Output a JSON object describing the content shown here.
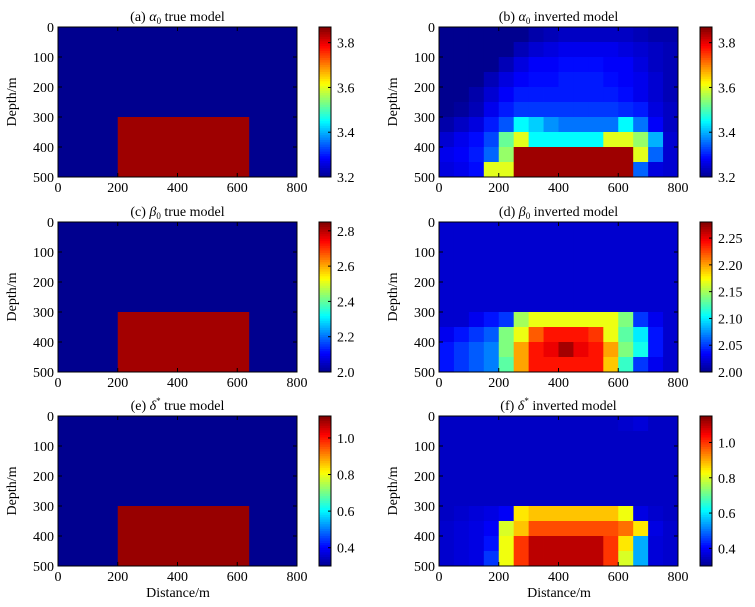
{
  "figure": {
    "xlabel": "Distance/m"
  },
  "colors": {
    "jet": [
      "#00008F",
      "#0000FF",
      "#007FFF",
      "#00FFFF",
      "#7FFF7F",
      "#FFFF00",
      "#FF7F00",
      "#FF0000",
      "#7F0000"
    ],
    "background": "#ffffff"
  },
  "chart_data": [
    {
      "type": "heatmap",
      "id": "a",
      "title_prefix": "(a)",
      "title_symbol": "α",
      "title_sub": "0",
      "title_sup": "",
      "title_suffix": "true model",
      "ylabel": "Depth/m",
      "xlim": [
        0,
        800
      ],
      "ylim": [
        0,
        500
      ],
      "xticks": [
        "0",
        "200",
        "400",
        "600",
        "800"
      ],
      "yticks": [
        "0",
        "100",
        "200",
        "300",
        "400",
        "500"
      ],
      "colorbar": {
        "range": [
          3.2,
          3.87
        ],
        "ticks": [
          "3.2",
          "3.4",
          "3.6",
          "3.8"
        ],
        "tick_values": [
          3.2,
          3.4,
          3.6,
          3.8
        ]
      },
      "background_value": 3.2,
      "true_block": {
        "x_range": [
          200,
          640
        ],
        "depth_range": [
          300,
          500
        ],
        "value": 3.85
      }
    },
    {
      "type": "heatmap",
      "id": "b",
      "title_prefix": "(b)",
      "title_symbol": "α",
      "title_sub": "0",
      "title_sup": "",
      "title_suffix": "inverted  model",
      "ylabel": "Depth/m",
      "xlim": [
        0,
        800
      ],
      "ylim": [
        0,
        500
      ],
      "xticks": [
        "0",
        "200",
        "400",
        "600",
        "800"
      ],
      "yticks": [
        "0",
        "100",
        "200",
        "300",
        "400",
        "500"
      ],
      "colorbar": {
        "range": [
          3.2,
          3.87
        ],
        "ticks": [
          "3.2",
          "3.4",
          "3.6",
          "3.8"
        ],
        "tick_values": [
          3.2,
          3.4,
          3.6,
          3.8
        ]
      },
      "grid": {
        "x_step": 50,
        "depth_step": 50,
        "cols": 16,
        "rows": 10
      },
      "cells": [
        [
          3.2,
          3.2,
          3.2,
          3.2,
          3.2,
          3.2,
          3.22,
          3.23,
          3.24,
          3.24,
          3.24,
          3.24,
          3.24,
          3.23,
          3.22,
          3.22
        ],
        [
          3.2,
          3.2,
          3.2,
          3.2,
          3.2,
          3.23,
          3.25,
          3.26,
          3.27,
          3.27,
          3.27,
          3.27,
          3.26,
          3.25,
          3.24,
          3.23
        ],
        [
          3.2,
          3.2,
          3.2,
          3.2,
          3.23,
          3.26,
          3.28,
          3.28,
          3.29,
          3.29,
          3.29,
          3.28,
          3.28,
          3.26,
          3.24,
          3.23
        ],
        [
          3.2,
          3.2,
          3.2,
          3.23,
          3.26,
          3.28,
          3.29,
          3.29,
          3.3,
          3.3,
          3.3,
          3.29,
          3.28,
          3.27,
          3.25,
          3.23
        ],
        [
          3.2,
          3.2,
          3.22,
          3.25,
          3.28,
          3.3,
          3.3,
          3.3,
          3.3,
          3.3,
          3.3,
          3.3,
          3.29,
          3.27,
          3.25,
          3.23
        ],
        [
          3.2,
          3.21,
          3.23,
          3.27,
          3.3,
          3.32,
          3.32,
          3.32,
          3.32,
          3.32,
          3.32,
          3.32,
          3.31,
          3.3,
          3.26,
          3.24
        ],
        [
          3.22,
          3.24,
          3.26,
          3.3,
          3.34,
          3.45,
          3.42,
          3.38,
          3.36,
          3.36,
          3.36,
          3.36,
          3.45,
          3.36,
          3.28,
          3.24
        ],
        [
          3.25,
          3.27,
          3.29,
          3.33,
          3.52,
          3.6,
          3.45,
          3.45,
          3.45,
          3.45,
          3.45,
          3.6,
          3.6,
          3.55,
          3.4,
          3.25
        ],
        [
          3.27,
          3.28,
          3.3,
          3.35,
          3.55,
          3.85,
          3.85,
          3.85,
          3.85,
          3.85,
          3.85,
          3.85,
          3.85,
          3.6,
          3.35,
          3.25
        ],
        [
          3.26,
          3.27,
          3.29,
          3.6,
          3.6,
          3.85,
          3.85,
          3.85,
          3.85,
          3.85,
          3.85,
          3.85,
          3.85,
          3.35,
          3.26,
          3.25
        ]
      ]
    },
    {
      "type": "heatmap",
      "id": "c",
      "title_prefix": "(c)",
      "title_symbol": "β",
      "title_sub": "0",
      "title_sup": "",
      "title_suffix": "true model",
      "ylabel": "Depth/m",
      "xlim": [
        0,
        800
      ],
      "ylim": [
        0,
        500
      ],
      "xticks": [
        "0",
        "200",
        "400",
        "600",
        "800"
      ],
      "yticks": [
        "0",
        "100",
        "200",
        "300",
        "400",
        "500"
      ],
      "colorbar": {
        "range": [
          2.0,
          2.85
        ],
        "ticks": [
          "2.0",
          "2.2",
          "2.4",
          "2.6",
          "2.8"
        ],
        "tick_values": [
          2.0,
          2.2,
          2.4,
          2.6,
          2.8
        ]
      },
      "background_value": 2.0,
      "true_block": {
        "x_range": [
          200,
          640
        ],
        "depth_range": [
          300,
          500
        ],
        "value": 2.82
      }
    },
    {
      "type": "heatmap",
      "id": "d",
      "title_prefix": "(d)",
      "title_symbol": "β",
      "title_sub": "0",
      "title_sup": "",
      "title_suffix": "inverted model",
      "ylabel": "Depth/m",
      "xlim": [
        0,
        800
      ],
      "ylim": [
        0,
        500
      ],
      "xticks": [
        "0",
        "200",
        "400",
        "600",
        "800"
      ],
      "yticks": [
        "0",
        "100",
        "200",
        "300",
        "400",
        "500"
      ],
      "colorbar": {
        "range": [
          2.0,
          2.28
        ],
        "ticks": [
          "2.00",
          "2.05",
          "2.10",
          "2.15",
          "2.20",
          "2.25"
        ],
        "tick_values": [
          2.0,
          2.05,
          2.1,
          2.15,
          2.2,
          2.25
        ]
      },
      "grid": {
        "x_step": 50,
        "depth_step": 50,
        "cols": 16,
        "rows": 10
      },
      "cells": [
        [
          2.02,
          2.02,
          2.02,
          2.02,
          2.02,
          2.02,
          2.02,
          2.02,
          2.02,
          2.02,
          2.02,
          2.02,
          2.02,
          2.02,
          2.02,
          2.02
        ],
        [
          2.02,
          2.02,
          2.02,
          2.02,
          2.02,
          2.02,
          2.02,
          2.02,
          2.02,
          2.02,
          2.02,
          2.02,
          2.02,
          2.02,
          2.02,
          2.02
        ],
        [
          2.02,
          2.02,
          2.02,
          2.02,
          2.02,
          2.02,
          2.02,
          2.02,
          2.02,
          2.02,
          2.02,
          2.02,
          2.02,
          2.02,
          2.02,
          2.02
        ],
        [
          2.02,
          2.02,
          2.02,
          2.02,
          2.02,
          2.02,
          2.02,
          2.02,
          2.02,
          2.02,
          2.02,
          2.02,
          2.02,
          2.02,
          2.02,
          2.02
        ],
        [
          2.02,
          2.02,
          2.02,
          2.02,
          2.02,
          2.02,
          2.02,
          2.02,
          2.02,
          2.02,
          2.02,
          2.02,
          2.02,
          2.02,
          2.02,
          2.02
        ],
        [
          2.02,
          2.02,
          2.02,
          2.02,
          2.02,
          2.02,
          2.02,
          2.02,
          2.02,
          2.02,
          2.02,
          2.02,
          2.02,
          2.02,
          2.02,
          2.02
        ],
        [
          2.02,
          2.02,
          2.03,
          2.04,
          2.05,
          2.15,
          2.17,
          2.17,
          2.17,
          2.17,
          2.17,
          2.17,
          2.14,
          2.05,
          2.03,
          2.02
        ],
        [
          2.03,
          2.04,
          2.05,
          2.06,
          2.14,
          2.17,
          2.22,
          2.24,
          2.24,
          2.24,
          2.23,
          2.17,
          2.13,
          2.1,
          2.04,
          2.02
        ],
        [
          2.04,
          2.05,
          2.06,
          2.07,
          2.14,
          2.2,
          2.24,
          2.25,
          2.27,
          2.25,
          2.24,
          2.2,
          2.14,
          2.11,
          2.04,
          2.02
        ],
        [
          2.04,
          2.05,
          2.06,
          2.07,
          2.13,
          2.2,
          2.24,
          2.24,
          2.24,
          2.24,
          2.24,
          2.19,
          2.12,
          2.05,
          2.03,
          2.02
        ]
      ]
    },
    {
      "type": "heatmap",
      "id": "e",
      "title_prefix": "(e)",
      "title_symbol": "δ",
      "title_sub": "",
      "title_sup": "*",
      "title_suffix": "true model",
      "ylabel": "Depth/m",
      "xlim": [
        0,
        800
      ],
      "ylim": [
        0,
        500
      ],
      "xticks": [
        "0",
        "200",
        "400",
        "600",
        "800"
      ],
      "yticks": [
        "0",
        "100",
        "200",
        "300",
        "400",
        "500"
      ],
      "colorbar": {
        "range": [
          0.3,
          1.12
        ],
        "ticks": [
          "0.4",
          "0.6",
          "0.8",
          "1.0"
        ],
        "tick_values": [
          0.4,
          0.6,
          0.8,
          1.0
        ]
      },
      "background_value": 0.3,
      "true_block": {
        "x_range": [
          200,
          640
        ],
        "depth_range": [
          300,
          500
        ],
        "value": 1.1
      }
    },
    {
      "type": "heatmap",
      "id": "f",
      "title_prefix": "(f)",
      "title_symbol": "δ",
      "title_sub": "",
      "title_sup": "*",
      "title_suffix": "inverted model",
      "ylabel": "Depth/m",
      "xlim": [
        0,
        800
      ],
      "ylim": [
        0,
        500
      ],
      "xticks": [
        "0",
        "200",
        "400",
        "600",
        "800"
      ],
      "yticks": [
        "0",
        "100",
        "200",
        "300",
        "400",
        "500"
      ],
      "colorbar": {
        "range": [
          0.3,
          1.15
        ],
        "ticks": [
          "0.4",
          "0.6",
          "0.8",
          "1.0"
        ],
        "tick_values": [
          0.4,
          0.6,
          0.8,
          1.0
        ]
      },
      "grid": {
        "x_step": 50,
        "depth_step": 50,
        "cols": 16,
        "rows": 10
      },
      "cells": [
        [
          0.35,
          0.35,
          0.35,
          0.35,
          0.35,
          0.35,
          0.35,
          0.35,
          0.35,
          0.35,
          0.35,
          0.35,
          0.36,
          0.37,
          0.35,
          0.35
        ],
        [
          0.35,
          0.35,
          0.35,
          0.35,
          0.35,
          0.35,
          0.35,
          0.35,
          0.35,
          0.35,
          0.35,
          0.35,
          0.35,
          0.35,
          0.35,
          0.35
        ],
        [
          0.35,
          0.35,
          0.35,
          0.35,
          0.35,
          0.35,
          0.35,
          0.35,
          0.35,
          0.35,
          0.35,
          0.35,
          0.35,
          0.35,
          0.35,
          0.35
        ],
        [
          0.35,
          0.35,
          0.35,
          0.35,
          0.35,
          0.35,
          0.35,
          0.35,
          0.35,
          0.35,
          0.35,
          0.35,
          0.35,
          0.35,
          0.35,
          0.35
        ],
        [
          0.35,
          0.35,
          0.35,
          0.35,
          0.35,
          0.35,
          0.35,
          0.35,
          0.35,
          0.35,
          0.35,
          0.35,
          0.35,
          0.35,
          0.35,
          0.35
        ],
        [
          0.35,
          0.35,
          0.35,
          0.35,
          0.35,
          0.35,
          0.35,
          0.35,
          0.35,
          0.35,
          0.35,
          0.35,
          0.35,
          0.35,
          0.35,
          0.35
        ],
        [
          0.35,
          0.36,
          0.37,
          0.38,
          0.4,
          0.85,
          0.88,
          0.88,
          0.88,
          0.88,
          0.88,
          0.88,
          0.82,
          0.38,
          0.36,
          0.35
        ],
        [
          0.36,
          0.37,
          0.38,
          0.4,
          0.8,
          0.88,
          0.98,
          0.98,
          0.98,
          0.98,
          0.98,
          0.98,
          0.95,
          0.85,
          0.38,
          0.36
        ],
        [
          0.36,
          0.37,
          0.38,
          0.42,
          0.82,
          1.0,
          1.1,
          1.1,
          1.1,
          1.1,
          1.1,
          1.0,
          0.85,
          0.55,
          0.37,
          0.36
        ],
        [
          0.36,
          0.37,
          0.38,
          0.45,
          0.82,
          1.0,
          1.1,
          1.1,
          1.1,
          1.1,
          1.1,
          1.0,
          0.8,
          0.55,
          0.37,
          0.36
        ]
      ]
    }
  ]
}
